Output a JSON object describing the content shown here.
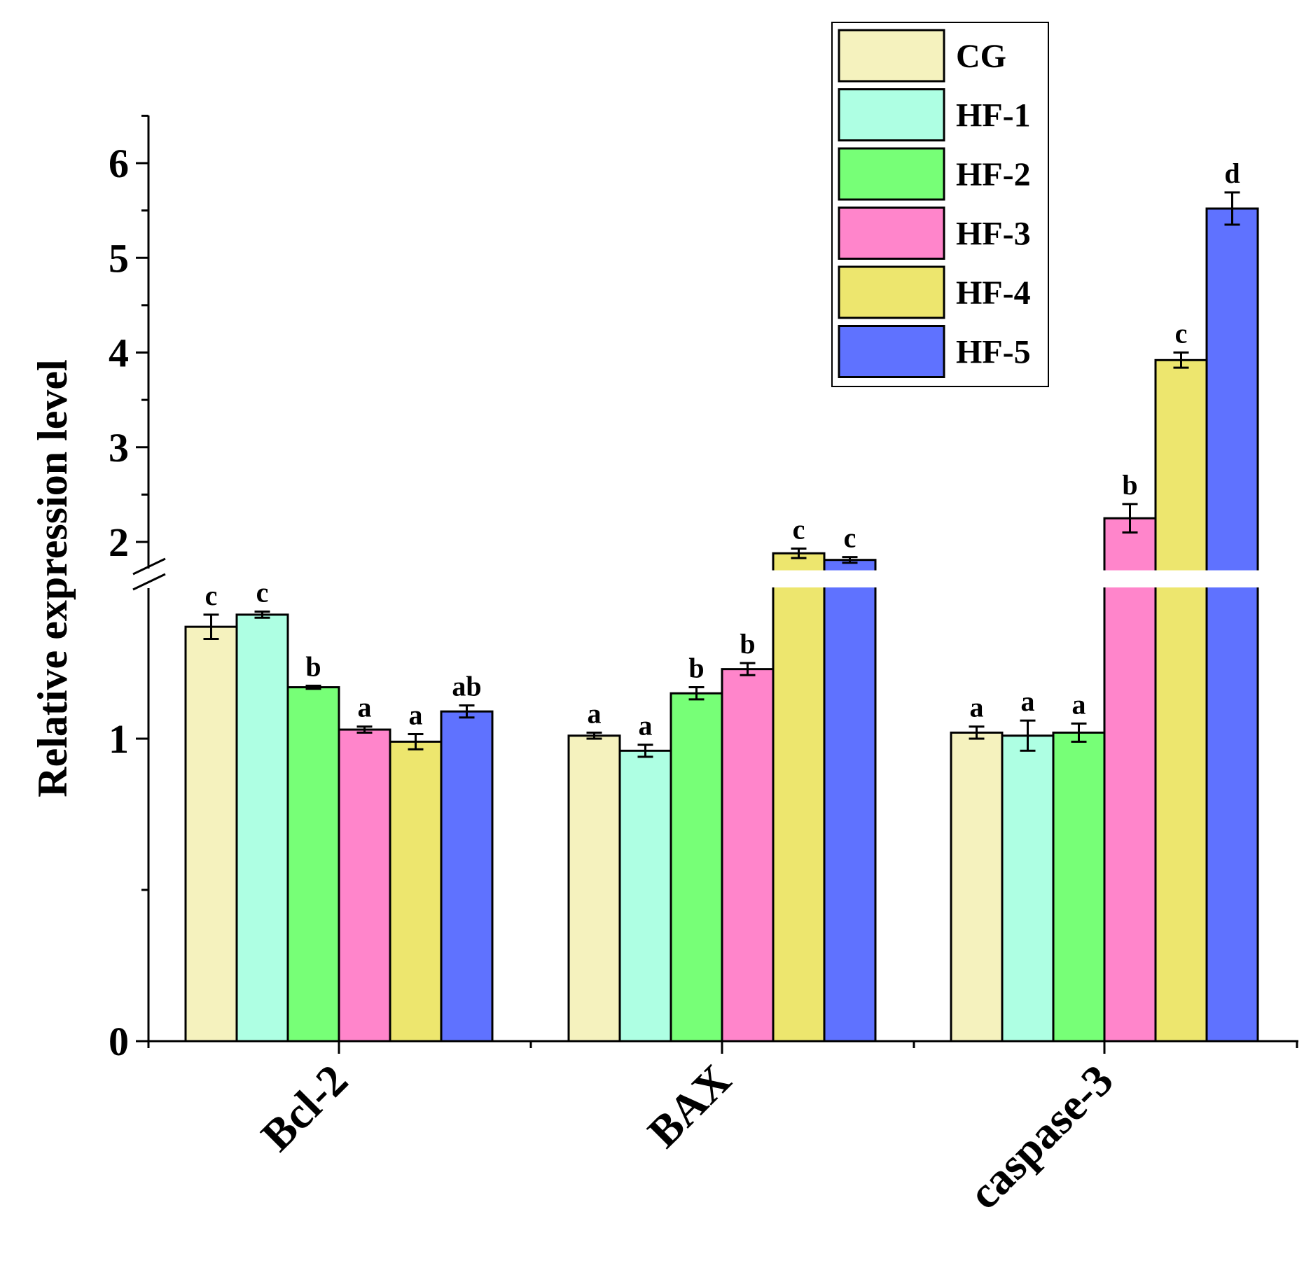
{
  "chart_data": {
    "type": "bar",
    "title": "",
    "xlabel": "",
    "ylabel": "Relative expression level",
    "categories": [
      "Bcl-2",
      "BAX",
      "caspase-3"
    ],
    "y_axis": {
      "broken": true,
      "break_between": [
        1.5,
        1.7
      ],
      "lower_ticks": [
        "0",
        "1"
      ],
      "upper_ticks": [
        "2",
        "3",
        "4",
        "5",
        "6"
      ]
    },
    "legend_position": "top-right",
    "grid": false,
    "series": [
      {
        "name": "CG",
        "color": "#F5F2BE",
        "values": [
          1.37,
          1.01,
          1.02
        ],
        "errors": [
          0.04,
          0.01,
          0.02
        ],
        "labels": [
          "c",
          "a",
          "a"
        ]
      },
      {
        "name": "HF-1",
        "color": "#AEFFE3",
        "values": [
          1.41,
          0.96,
          1.01
        ],
        "errors": [
          0.01,
          0.02,
          0.05
        ],
        "labels": [
          "c",
          "a",
          "a"
        ]
      },
      {
        "name": "HF-2",
        "color": "#77FF77",
        "values": [
          1.17,
          1.15,
          1.02
        ],
        "errors": [
          0.005,
          0.02,
          0.03
        ],
        "labels": [
          "b",
          "b",
          "a"
        ]
      },
      {
        "name": "HF-3",
        "color": "#FF85CB",
        "values": [
          1.03,
          1.23,
          2.25
        ],
        "errors": [
          0.01,
          0.02,
          0.15
        ],
        "labels": [
          "a",
          "b",
          "b"
        ]
      },
      {
        "name": "HF-4",
        "color": "#EDE66E",
        "values": [
          0.99,
          1.88,
          3.92
        ],
        "errors": [
          0.025,
          0.05,
          0.08
        ],
        "labels": [
          "a",
          "c",
          "c"
        ]
      },
      {
        "name": "HF-5",
        "color": "#5F72FF",
        "values": [
          1.09,
          1.81,
          5.52
        ],
        "errors": [
          0.02,
          0.03,
          0.17
        ],
        "labels": [
          "ab",
          "c",
          "d"
        ]
      }
    ]
  }
}
